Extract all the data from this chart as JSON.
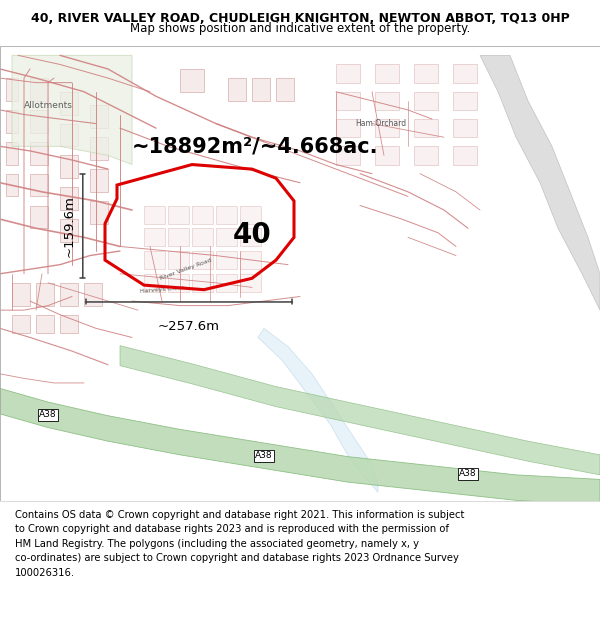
{
  "title_line1": "40, RIVER VALLEY ROAD, CHUDLEIGH KNIGHTON, NEWTON ABBOT, TQ13 0HP",
  "title_line2": "Map shows position and indicative extent of the property.",
  "area_label": "~18892m²/~4.668ac.",
  "number_label": "40",
  "dim_width": "~257.6m",
  "dim_height": "~159.6m",
  "footer": "Contains OS data © Crown copyright and database right 2021. This information is subject\nto Crown copyright and database rights 2023 and is reproduced with the permission of\nHM Land Registry. The polygons (including the associated geometry, namely x, y\nco-ordinates) are subject to Crown copyright and database rights 2023 Ordnance Survey\n100026316.",
  "title_fontsize": 9.0,
  "subtitle_fontsize": 8.5,
  "area_fontsize": 15,
  "number_fontsize": 20,
  "footer_fontsize": 7.2,
  "dim_fontsize": 9.5,
  "road_pink": "#e8b0b0",
  "road_outline": "#d08080",
  "building_fill": "#f5e8e8",
  "building_edge": "#d4a0a0",
  "allot_fill": "#eaf0e4",
  "allot_edge": "#c8d8b8",
  "green_fill": "#b8d8b0",
  "green_edge": "#80b878",
  "gray_road": "#c8c8c8",
  "water_fill": "#d0e8f4",
  "water_edge": "#a0c8e0",
  "polygon_color": "#dd0000",
  "dim_color": "#404040",
  "map_bg": "#ffffff",
  "title_fontsize_num": 9.0
}
